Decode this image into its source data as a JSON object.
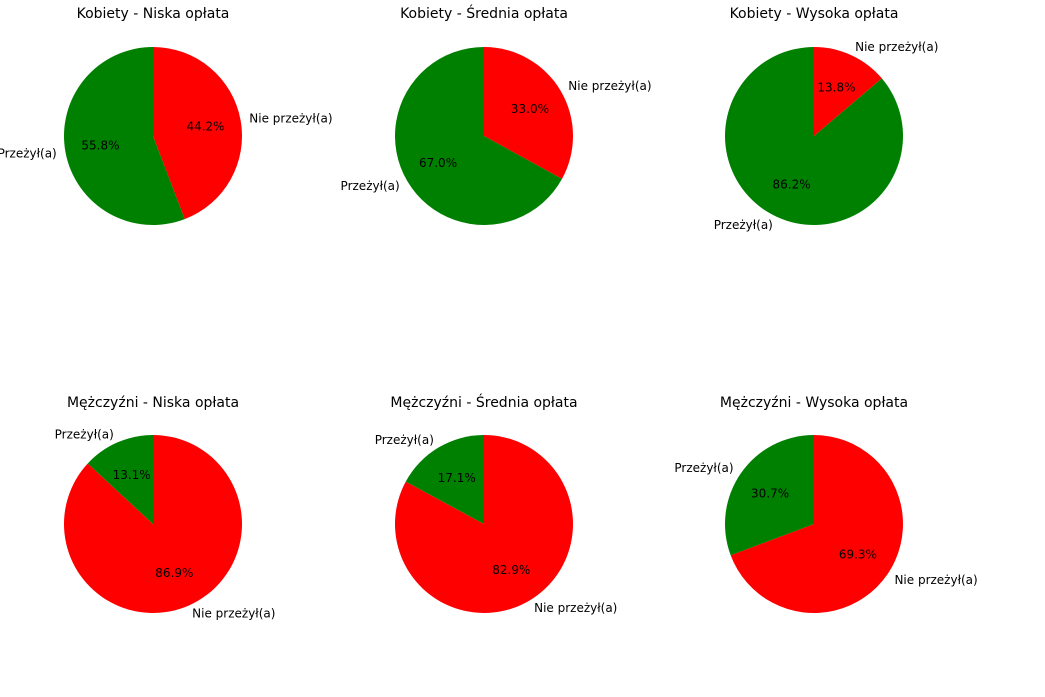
{
  "colors": {
    "survived": "#008000",
    "died": "#ff0000"
  },
  "chart_data": [
    {
      "type": "pie",
      "title": "Kobiety - Niska opłata",
      "slices": [
        {
          "label": "Nie przeżył(a)",
          "value": 44.2,
          "pct_label": "44.2%",
          "color": "#ff0000"
        },
        {
          "label": "Przeżył(a)",
          "value": 55.8,
          "pct_label": "55.8%",
          "color": "#008000"
        }
      ]
    },
    {
      "type": "pie",
      "title": "Kobiety - Średnia opłata",
      "slices": [
        {
          "label": "Nie przeżył(a)",
          "value": 33.0,
          "pct_label": "33.0%",
          "color": "#ff0000"
        },
        {
          "label": "Przeżył(a)",
          "value": 67.0,
          "pct_label": "67.0%",
          "color": "#008000"
        }
      ]
    },
    {
      "type": "pie",
      "title": "Kobiety - Wysoka opłata",
      "slices": [
        {
          "label": "Nie przeżył(a)",
          "value": 13.8,
          "pct_label": "13.8%",
          "color": "#ff0000"
        },
        {
          "label": "Przeżył(a)",
          "value": 86.2,
          "pct_label": "86.2%",
          "color": "#008000"
        }
      ]
    },
    {
      "type": "pie",
      "title": "Mężczyźni - Niska opłata",
      "slices": [
        {
          "label": "Nie przeżył(a)",
          "value": 86.9,
          "pct_label": "86.9%",
          "color": "#ff0000"
        },
        {
          "label": "Przeżył(a)",
          "value": 13.1,
          "pct_label": "13.1%",
          "color": "#008000"
        }
      ]
    },
    {
      "type": "pie",
      "title": "Mężczyźni - Średnia opłata",
      "slices": [
        {
          "label": "Nie przeżył(a)",
          "value": 82.9,
          "pct_label": "82.9%",
          "color": "#ff0000"
        },
        {
          "label": "Przeżył(a)",
          "value": 17.1,
          "pct_label": "17.1%",
          "color": "#008000"
        }
      ]
    },
    {
      "type": "pie",
      "title": "Mężczyźni - Wysoka opłata",
      "slices": [
        {
          "label": "Nie przeżył(a)",
          "value": 69.3,
          "pct_label": "69.3%",
          "color": "#ff0000"
        },
        {
          "label": "Przeżył(a)",
          "value": 30.7,
          "pct_label": "30.7%",
          "color": "#008000"
        }
      ]
    }
  ]
}
